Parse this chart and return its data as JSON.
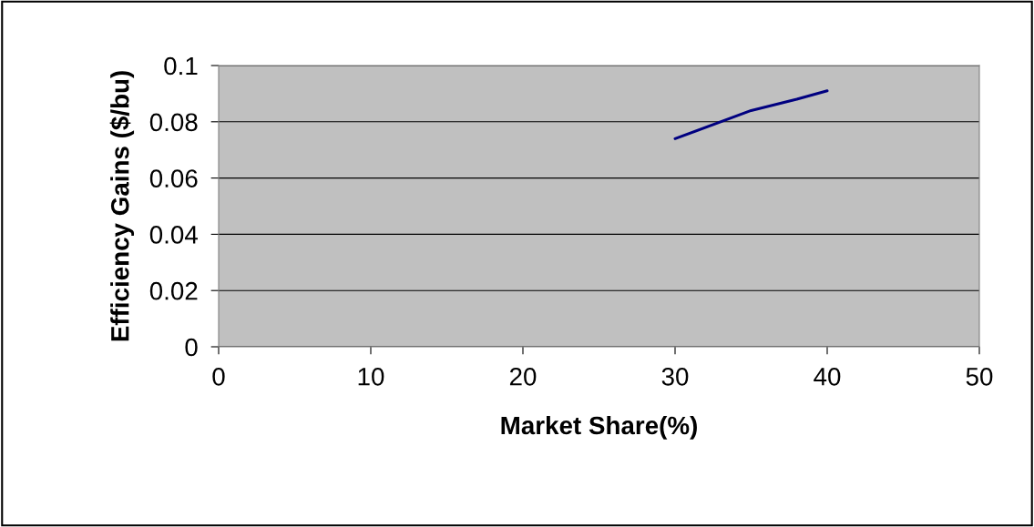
{
  "chart_data": {
    "type": "line",
    "xlabel": "Market Share(%)",
    "ylabel": "Efficiency Gains ($/bu)",
    "x": [
      30,
      35,
      38,
      40
    ],
    "series": [
      {
        "color": "#000080",
        "values": [
          0.074,
          0.084,
          0.088,
          0.091
        ]
      }
    ],
    "xlim": [
      0,
      50
    ],
    "xticks": [
      0,
      10,
      20,
      30,
      40,
      50
    ],
    "ylim": [
      0,
      0.1
    ],
    "yticks": [
      0,
      0.02,
      0.04,
      0.06,
      0.08,
      0.1
    ],
    "grid": "y"
  }
}
